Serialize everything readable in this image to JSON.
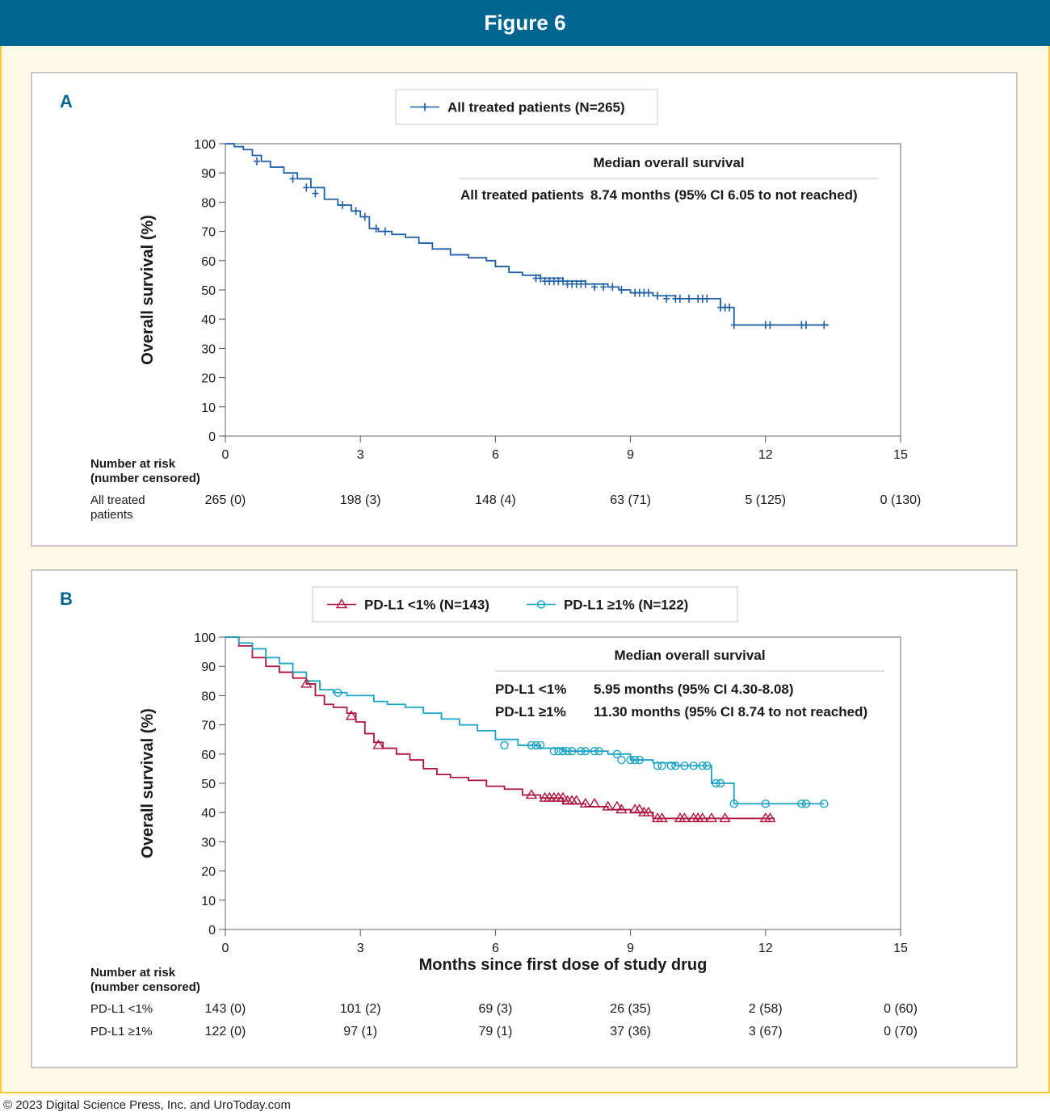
{
  "header": {
    "title": "Figure 6"
  },
  "footer": {
    "copyright": "© 2023 Digital Science Press, Inc. and UroToday.com"
  },
  "chart_data": [
    {
      "panel_label": "A",
      "type": "line",
      "ylabel": "Overall survival (%)",
      "xlabel": "",
      "xlim": [
        0,
        15
      ],
      "ylim": [
        0,
        100
      ],
      "x_ticks": [
        0,
        3,
        6,
        9,
        12,
        15
      ],
      "y_ticks": [
        0,
        10,
        20,
        30,
        40,
        50,
        60,
        70,
        80,
        90,
        100
      ],
      "legend": {
        "placement": "top-center",
        "entries": [
          "All treated patients (N=265)"
        ]
      },
      "annotation": {
        "title": "Median overall survival",
        "rows": [
          {
            "label": "All treated patients",
            "value": "8.74 months (95% CI 6.05 to not reached)"
          }
        ]
      },
      "series": [
        {
          "name": "All treated patients (N=265)",
          "color": "#1f5fa6",
          "marker": "plus",
          "x": [
            0,
            0.2,
            0.4,
            0.6,
            0.8,
            1.0,
            1.3,
            1.6,
            1.9,
            2.2,
            2.5,
            2.8,
            3.0,
            3.2,
            3.4,
            3.7,
            4.0,
            4.3,
            4.6,
            5.0,
            5.4,
            5.8,
            6.0,
            6.3,
            6.6,
            7.0,
            7.5,
            8.0,
            8.5,
            8.74,
            9.0,
            9.5,
            10.0,
            10.5,
            10.8,
            11.0,
            11.2,
            11.3,
            11.6,
            12.0,
            12.5,
            13.0,
            13.4
          ],
          "y": [
            100,
            99,
            98,
            96,
            94,
            92,
            90,
            88,
            85,
            81,
            79,
            77,
            75,
            71,
            70,
            69,
            68,
            66,
            64,
            62,
            61,
            60,
            58,
            56,
            55,
            54,
            53,
            52,
            51,
            50,
            49,
            48,
            47,
            47,
            47,
            44,
            44,
            38,
            38,
            38,
            38,
            38,
            38
          ]
        }
      ],
      "censor_marks": [
        {
          "series": 0,
          "x": [
            0.7,
            1.5,
            1.8,
            2.0,
            2.6,
            2.9,
            3.1,
            3.35,
            3.55,
            6.9,
            7.0,
            7.1,
            7.2,
            7.3,
            7.4,
            7.5,
            7.6,
            7.7,
            7.8,
            7.9,
            8.0,
            8.2,
            8.4,
            8.6,
            8.8,
            9.1,
            9.2,
            9.3,
            9.4,
            9.6,
            9.8,
            10.0,
            10.1,
            10.3,
            10.5,
            10.6,
            10.7,
            11.0,
            11.1,
            11.2,
            11.3,
            12.0,
            12.1,
            12.8,
            12.9,
            13.3
          ],
          "y": [
            94,
            88,
            85,
            83,
            79,
            77,
            75,
            71,
            70,
            54,
            54,
            53,
            53,
            53,
            53,
            53,
            52,
            52,
            52,
            52,
            52,
            51,
            51,
            51,
            50,
            49,
            49,
            49,
            49,
            48,
            47,
            47,
            47,
            47,
            47,
            47,
            47,
            44,
            44,
            44,
            38,
            38,
            38,
            38,
            38,
            38
          ]
        }
      ],
      "risk_table": {
        "header": [
          "Number at risk",
          "(number censored)"
        ],
        "rows": [
          {
            "label": [
              "All treated",
              "patients"
            ],
            "values": [
              "265 (0)",
              "198 (3)",
              "148 (4)",
              "63 (71)",
              "5 (125)",
              "0 (130)"
            ]
          }
        ]
      }
    },
    {
      "panel_label": "B",
      "type": "line",
      "ylabel": "Overall survival (%)",
      "xlabel": "Months since first dose of study drug",
      "xlim": [
        0,
        15
      ],
      "ylim": [
        0,
        100
      ],
      "x_ticks": [
        0,
        3,
        6,
        9,
        12,
        15
      ],
      "y_ticks": [
        0,
        10,
        20,
        30,
        40,
        50,
        60,
        70,
        80,
        90,
        100
      ],
      "legend": {
        "placement": "top-center",
        "entries": [
          "PD-L1 <1% (N=143)",
          "PD-L1 ≥1% (N=122)"
        ]
      },
      "annotation": {
        "title": "Median overall survival",
        "rows": [
          {
            "label": "PD-L1 <1%",
            "value": "5.95 months (95% CI 4.30-8.08)"
          },
          {
            "label": "PD-L1 ≥1%",
            "value": "11.30 months (95% CI 8.74 to not reached)"
          }
        ]
      },
      "series": [
        {
          "name": "PD-L1 <1% (N=143)",
          "color": "#b0133e",
          "marker": "triangle",
          "x": [
            0,
            0.3,
            0.6,
            0.9,
            1.2,
            1.5,
            1.8,
            2.0,
            2.2,
            2.4,
            2.7,
            2.9,
            3.1,
            3.3,
            3.5,
            3.8,
            4.1,
            4.4,
            4.7,
            5.0,
            5.4,
            5.8,
            6.2,
            6.6,
            7.0,
            7.5,
            8.0,
            8.5,
            9.0,
            9.5,
            10.0,
            11.0,
            11.5,
            12.2
          ],
          "y": [
            100,
            97,
            93,
            90,
            88,
            86,
            84,
            80,
            77,
            76,
            74,
            71,
            67,
            64,
            62,
            60,
            58,
            55,
            53,
            52,
            51,
            49,
            48,
            46,
            45,
            43,
            42,
            41,
            40,
            38,
            38,
            38,
            38,
            38
          ]
        },
        {
          "name": "PD-L1 ≥1% (N=122)",
          "color": "#1aa3c4",
          "marker": "circle",
          "x": [
            0,
            0.3,
            0.6,
            0.9,
            1.2,
            1.5,
            1.8,
            2.1,
            2.4,
            2.7,
            3.0,
            3.3,
            3.6,
            4.0,
            4.4,
            4.8,
            5.2,
            5.6,
            6.0,
            6.5,
            7.0,
            7.5,
            8.0,
            8.5,
            9.0,
            9.5,
            10.0,
            10.5,
            10.8,
            11.1,
            11.3,
            12.0,
            13.3
          ],
          "y": [
            100,
            98,
            96,
            93,
            91,
            88,
            85,
            82,
            81,
            80,
            80,
            78,
            77,
            76,
            74,
            72,
            70,
            68,
            65,
            63,
            62,
            61,
            61,
            60,
            58,
            57,
            56,
            56,
            50,
            50,
            43,
            43,
            43
          ]
        }
      ],
      "censor_marks": [
        {
          "series": 0,
          "x": [
            1.8,
            2.8,
            3.4,
            6.8,
            7.1,
            7.2,
            7.3,
            7.4,
            7.5,
            7.6,
            7.7,
            7.8,
            8.0,
            8.2,
            8.5,
            8.7,
            8.8,
            9.1,
            9.2,
            9.3,
            9.4,
            9.6,
            9.7,
            10.1,
            10.2,
            10.4,
            10.5,
            10.6,
            10.8,
            11.1,
            12.0,
            12.1
          ],
          "y": [
            84,
            73,
            63,
            46,
            45,
            45,
            45,
            45,
            45,
            44,
            44,
            44,
            43,
            43,
            42,
            42,
            41,
            41,
            41,
            40,
            40,
            38,
            38,
            38,
            38,
            38,
            38,
            38,
            38,
            38,
            38,
            38
          ]
        },
        {
          "series": 1,
          "x": [
            2.5,
            6.2,
            6.8,
            6.9,
            7.0,
            7.3,
            7.4,
            7.5,
            7.6,
            7.7,
            7.9,
            8.0,
            8.2,
            8.3,
            8.7,
            8.8,
            9.0,
            9.1,
            9.2,
            9.6,
            9.7,
            9.9,
            10.0,
            10.2,
            10.4,
            10.6,
            10.7,
            10.9,
            11.0,
            11.3,
            12.0,
            12.8,
            12.9,
            13.3
          ],
          "y": [
            81,
            63,
            63,
            63,
            63,
            61,
            61,
            61,
            61,
            61,
            61,
            61,
            61,
            61,
            60,
            58,
            58,
            58,
            58,
            56,
            56,
            56,
            56,
            56,
            56,
            56,
            56,
            50,
            50,
            43,
            43,
            43,
            43,
            43
          ]
        }
      ],
      "risk_table": {
        "header": [
          "Number at risk",
          "(number censored)"
        ],
        "rows": [
          {
            "label": [
              "PD-L1 <1%"
            ],
            "values": [
              "143 (0)",
              "101 (2)",
              "69 (3)",
              "26 (35)",
              "2 (58)",
              "0 (60)"
            ]
          },
          {
            "label": [
              "PD-L1 ≥1%"
            ],
            "values": [
              "122 (0)",
              "97 (1)",
              "79 (1)",
              "37 (36)",
              "3 (67)",
              "0 (70)"
            ]
          }
        ]
      }
    }
  ]
}
